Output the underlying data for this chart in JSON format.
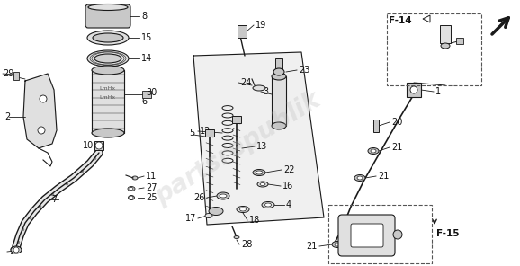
{
  "bg_color": "#ffffff",
  "line_color": "#1a1a1a",
  "label_color": "#111111",
  "label_fontsize": 7.0,
  "watermark": "partsrepublik",
  "watermark_color": "#bbbbbb",
  "watermark_alpha": 0.3,
  "parts_F14": "F-14",
  "parts_F15": "F-15",
  "dashed_color": "#555555",
  "fill_light": "#e0e0e0",
  "fill_mid": "#c8c8c8",
  "fill_dark": "#aaaaaa"
}
